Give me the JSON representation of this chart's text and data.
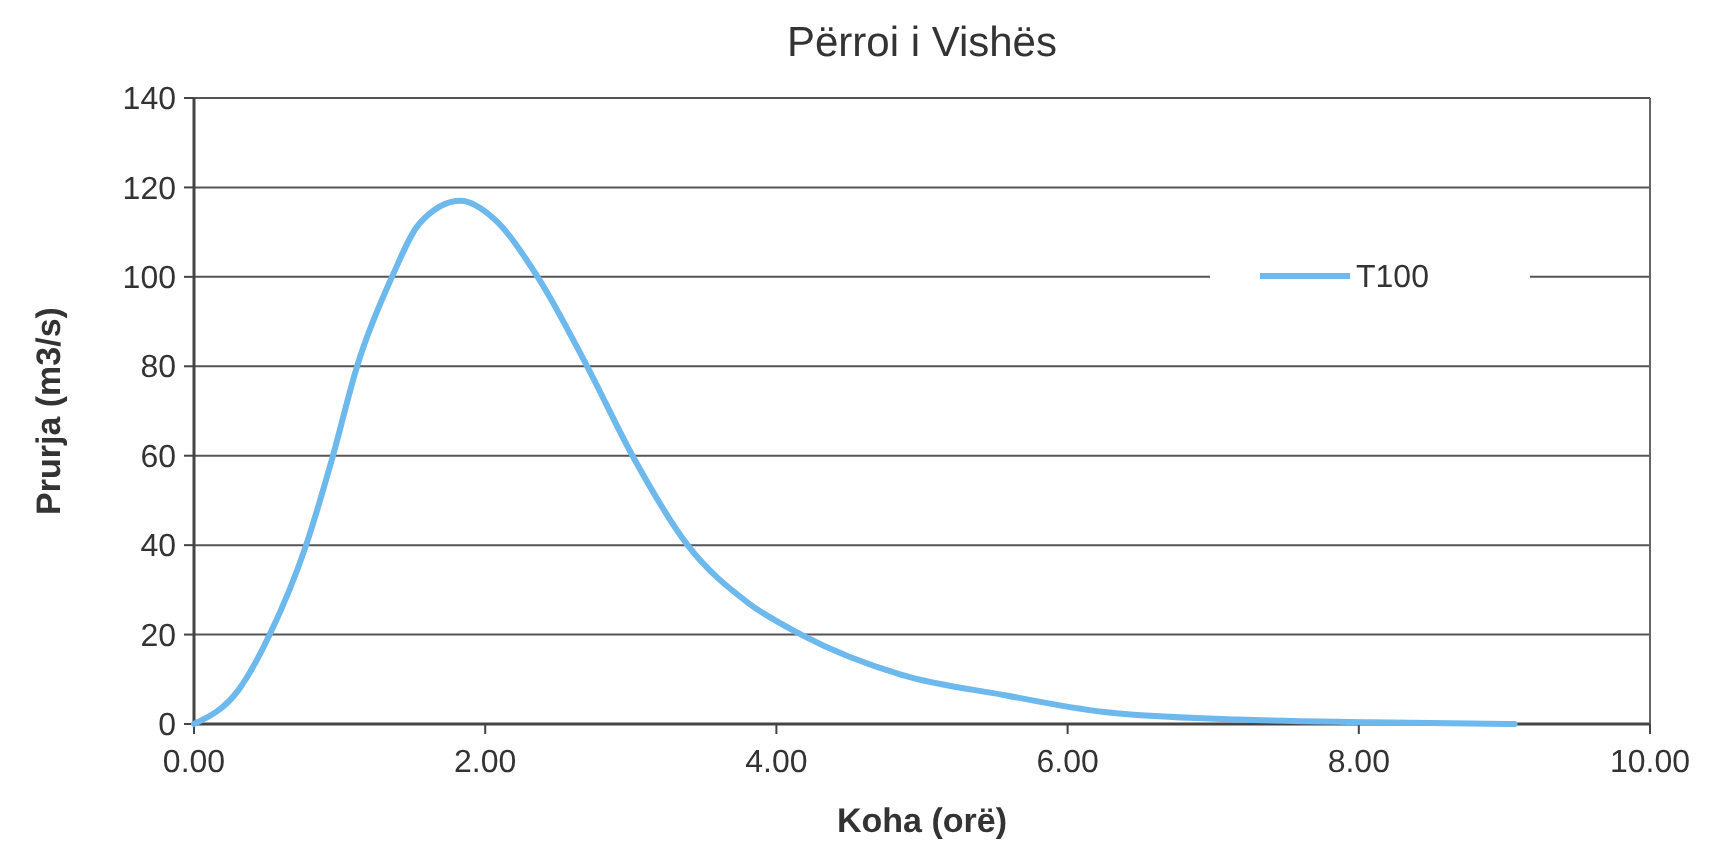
{
  "chart_data": {
    "type": "line",
    "title": "Përroi i Vishës",
    "xlabel": "Koha (orë)",
    "ylabel": "Prurja (m3/s)",
    "xlim": [
      0,
      10
    ],
    "xticks": [
      {
        "value": 0,
        "label": "0.00"
      },
      {
        "value": 2,
        "label": "2.00"
      },
      {
        "value": 4,
        "label": "4.00"
      },
      {
        "value": 6,
        "label": "6.00"
      },
      {
        "value": 8,
        "label": "8.00"
      },
      {
        "value": 10,
        "label": "10.00"
      }
    ],
    "ylim": [
      0,
      140
    ],
    "yticks": [
      0,
      20,
      40,
      60,
      80,
      100,
      120,
      140
    ],
    "grid": "y",
    "legend": "right",
    "marker": "none",
    "line_style": "solid",
    "series": [
      {
        "name": "T100",
        "color": "#6db8ec",
        "x": [
          0,
          0.31,
          0.52,
          0.77,
          0.95,
          1.12,
          1.36,
          1.55,
          1.83,
          2.06,
          2.36,
          2.7,
          3.02,
          3.39,
          3.81,
          4.17,
          4.86,
          5.56,
          6.25,
          7.17,
          8.08,
          9.07
        ],
        "values": [
          0,
          7.8,
          20,
          40,
          59.5,
          80,
          100,
          112,
          117,
          113,
          100,
          80,
          59.5,
          40,
          27,
          20,
          11,
          6.5,
          2.7,
          1,
          0.4,
          0
        ]
      }
    ]
  }
}
